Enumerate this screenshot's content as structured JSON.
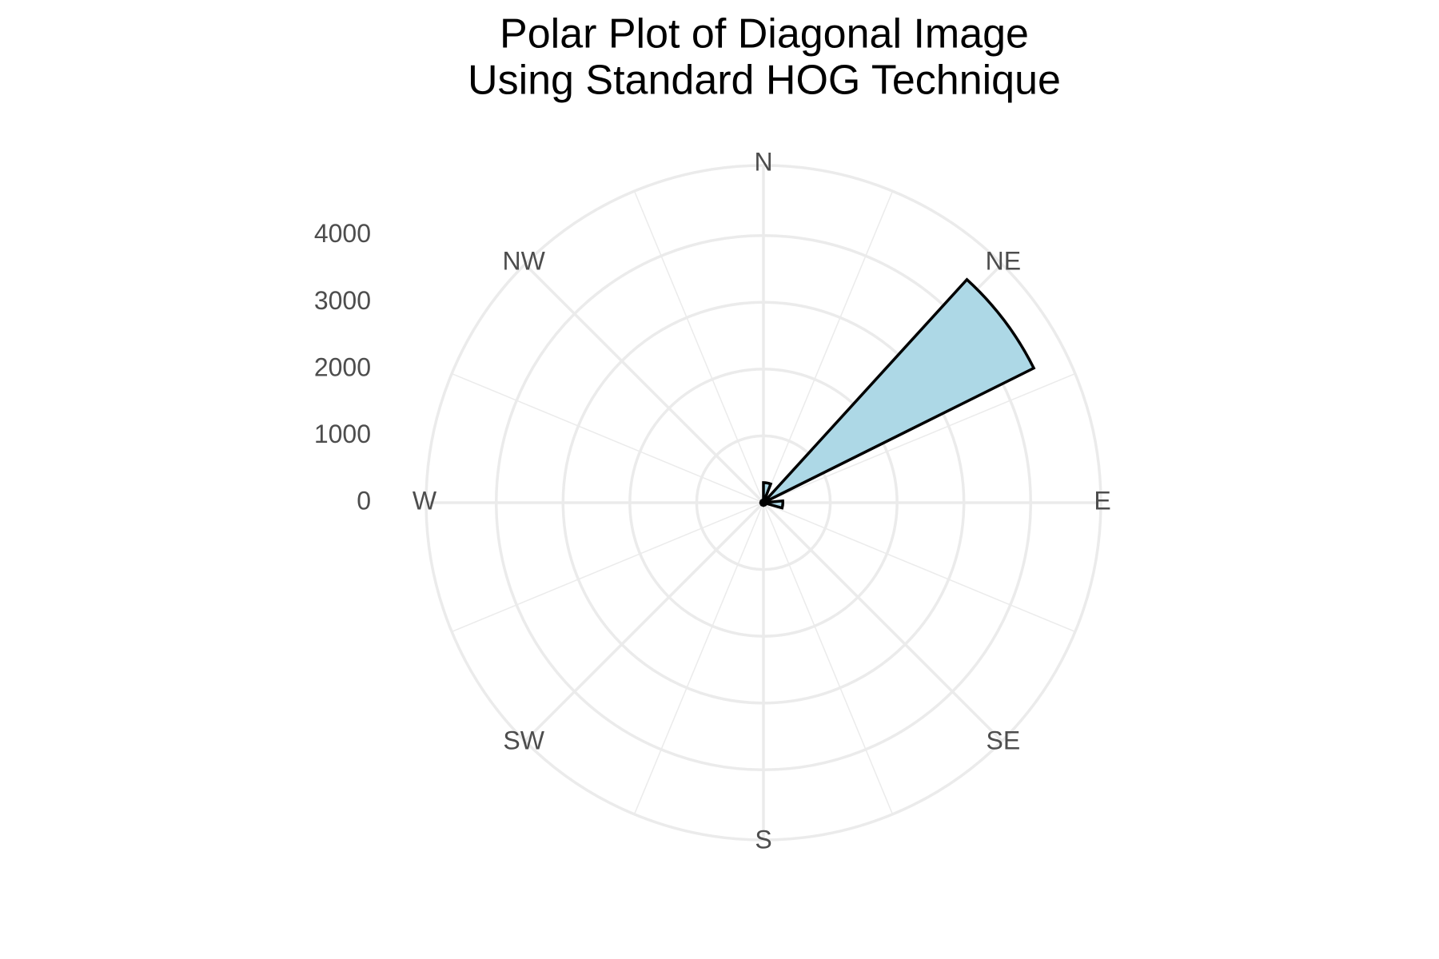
{
  "chart_data": {
    "type": "polar_histogram",
    "title": [
      "Polar Plot of Diagonal Image",
      "Using Standard HOG Technique"
    ],
    "bins": [
      0,
      21.18,
      42.35,
      63.53,
      84.71,
      105.88,
      127.06,
      148.24,
      169.41,
      190.59,
      211.76,
      232.94,
      254.12,
      275.29,
      296.47,
      317.65,
      338.82,
      360
    ],
    "values": [
      300,
      40,
      4520,
      30,
      290,
      40,
      30,
      40,
      30,
      40,
      30,
      40,
      30,
      40,
      30,
      40,
      30
    ],
    "color": "#add8e6",
    "edge_color": "#000000",
    "xlim": [
      0,
      360
    ],
    "xticks": [
      {
        "value": 0,
        "label": "N"
      },
      {
        "value": 45,
        "label": "NE"
      },
      {
        "value": 90,
        "label": "E"
      },
      {
        "value": 135,
        "label": "SE"
      },
      {
        "value": 180,
        "label": "S"
      },
      {
        "value": 225,
        "label": "SW"
      },
      {
        "value": 270,
        "label": "W"
      },
      {
        "value": 315,
        "label": "NW"
      }
    ],
    "xminor": [
      22.5,
      67.5,
      112.5,
      157.5,
      202.5,
      247.5,
      292.5,
      337.5
    ],
    "ylim": [
      0,
      5050
    ],
    "yticks": [
      0,
      1000,
      2000,
      3000,
      4000
    ],
    "grid": true
  }
}
